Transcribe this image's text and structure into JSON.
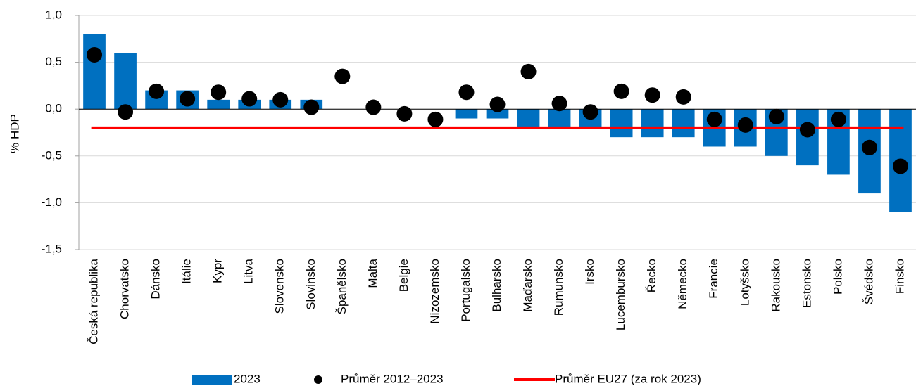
{
  "chart_data": {
    "type": "bar",
    "y_label": "% HDP",
    "categories": [
      "Česká republika",
      "Chorvatsko",
      "Dánsko",
      "Itálie",
      "Kypr",
      "Litva",
      "Slovensko",
      "Slovinsko",
      "Španělsko",
      "Malta",
      "Belgie",
      "Nizozemsko",
      "Portugalsko",
      "Bulharsko",
      "Maďarsko",
      "Rumunsko",
      "Irsko",
      "Lucembursko",
      "Řecko",
      "Německo",
      "Francie",
      "Lotyšsko",
      "Rakousko",
      "Estonsko",
      "Polsko",
      "Švédsko",
      "Finsko"
    ],
    "series": [
      {
        "name": "2023",
        "type": "bar",
        "color": "#0070c0",
        "values": [
          0.8,
          0.6,
          0.2,
          0.2,
          0.1,
          0.1,
          0.1,
          0.1,
          0.0,
          0.0,
          0.0,
          0.0,
          -0.1,
          -0.1,
          -0.2,
          -0.2,
          -0.2,
          -0.3,
          -0.3,
          -0.3,
          -0.4,
          -0.4,
          -0.5,
          -0.6,
          -0.7,
          -0.9,
          -1.1
        ]
      },
      {
        "name": "Průměr 2012–2023",
        "type": "scatter",
        "color": "#000000",
        "values": [
          0.58,
          -0.03,
          0.19,
          0.11,
          0.18,
          0.11,
          0.1,
          0.02,
          0.35,
          0.02,
          -0.05,
          -0.11,
          0.18,
          0.05,
          0.4,
          0.06,
          -0.03,
          0.19,
          0.15,
          0.13,
          -0.11,
          -0.17,
          -0.08,
          -0.22,
          -0.11,
          -0.41,
          -0.61
        ]
      }
    ],
    "reference_lines": [
      {
        "name": "Průměr EU27 (za rok 2023)",
        "value": -0.2,
        "color": "#ff0000"
      }
    ],
    "ylim": [
      -1.5,
      1.0
    ],
    "yticks": [
      {
        "value": -1.5,
        "label": "-1,5"
      },
      {
        "value": -1.0,
        "label": "-1,0"
      },
      {
        "value": -0.5,
        "label": "-0,5"
      },
      {
        "value": 0.0,
        "label": "0,0"
      },
      {
        "value": 0.5,
        "label": "0,5"
      },
      {
        "value": 1.0,
        "label": "1,0"
      }
    ],
    "grid": true
  }
}
